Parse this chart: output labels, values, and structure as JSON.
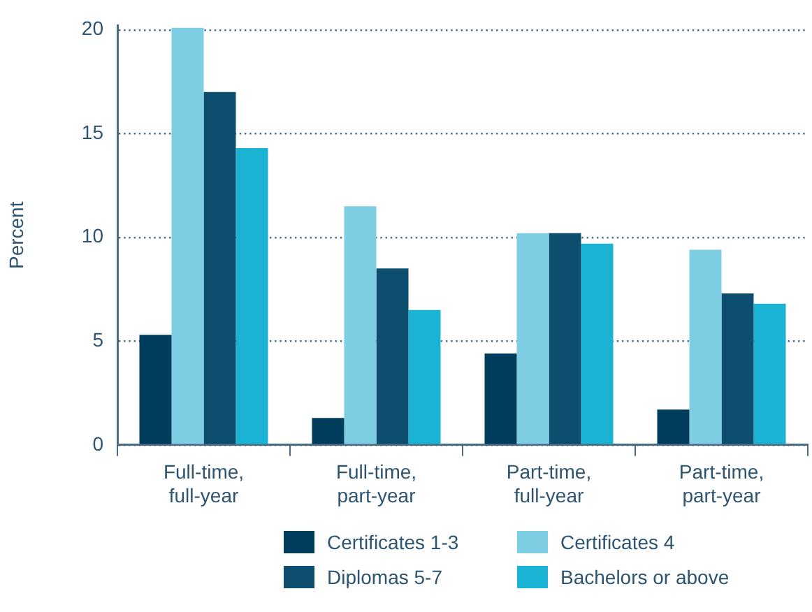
{
  "chart_data": {
    "type": "bar",
    "ylabel": "Percent",
    "categories": [
      "Full-time, full-year",
      "Full-time, part-year",
      "Part-time, full-year",
      "Part-time, part-year"
    ],
    "series": [
      {
        "name": "Certificates 1-3",
        "color": "#003d5c",
        "values": [
          5.3,
          1.3,
          4.4,
          1.7
        ]
      },
      {
        "name": "Certificates 4",
        "color": "#7dcde3",
        "values": [
          20.1,
          11.5,
          10.2,
          9.4
        ]
      },
      {
        "name": "Diplomas 5-7",
        "color": "#0d4d6e",
        "values": [
          17.0,
          8.5,
          10.2,
          7.3
        ]
      },
      {
        "name": "Bachelors or above",
        "color": "#1bb3d3",
        "values": [
          14.3,
          6.5,
          9.7,
          6.8
        ]
      }
    ],
    "ylim": [
      0,
      20.2
    ],
    "yticks": [
      0,
      5,
      10,
      15,
      20
    ],
    "grid": "y",
    "legend": "bottom"
  }
}
